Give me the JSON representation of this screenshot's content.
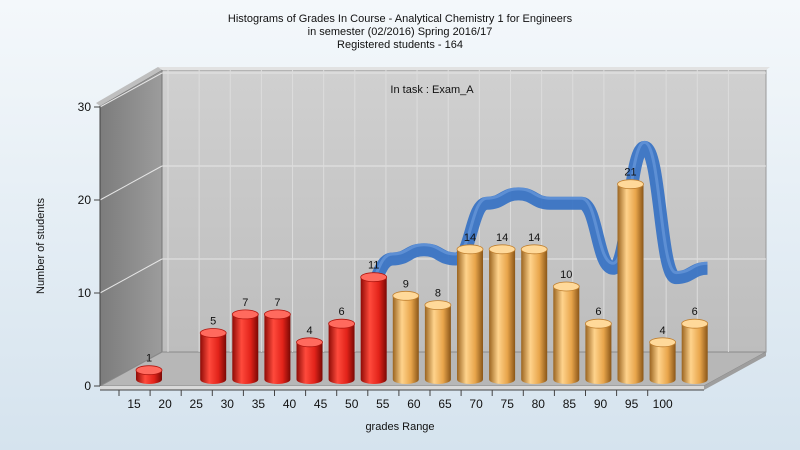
{
  "title_lines": [
    "Histograms of Grades  In Course - Analytical Chemistry 1 for Engineers",
    "in semester  (02/2016) Spring 2016/17",
    "Registered students - 164"
  ],
  "annotation": "In task : Exam_A",
  "xlabel": "grades Range",
  "ylabel": "Number of students",
  "colors": {
    "red_bar": "#e2231a",
    "orange_bar": "#e8a54b",
    "curve": "#3a74c4",
    "wall": "#8a8a8a",
    "back_panel": "#c6c6c6",
    "floor": "#b8b8b8"
  },
  "chart_data": {
    "type": "bar",
    "categories": [
      "15",
      "20",
      "25",
      "30",
      "35",
      "40",
      "45",
      "50",
      "55",
      "60",
      "65",
      "70",
      "75",
      "80",
      "85",
      "90",
      "95",
      "100"
    ],
    "values": [
      1,
      0,
      5,
      7,
      7,
      4,
      6,
      11,
      9,
      8,
      14,
      14,
      14,
      10,
      6,
      21,
      4,
      6
    ],
    "bar_colors": [
      "red",
      "red",
      "red",
      "red",
      "red",
      "red",
      "red",
      "red",
      "orange",
      "orange",
      "orange",
      "orange",
      "orange",
      "orange",
      "orange",
      "orange",
      "orange",
      "orange"
    ],
    "x_ticks": [
      "15",
      "20",
      "25",
      "30",
      "35",
      "40",
      "45",
      "50",
      "55",
      "60",
      "65",
      "70",
      "75",
      "80",
      "85",
      "90",
      "95",
      "100"
    ],
    "y_ticks": [
      "0",
      "10",
      "20",
      "30"
    ],
    "ylim": [
      0,
      30
    ],
    "grid": true,
    "curve": {
      "type": "line",
      "x": [
        45,
        50,
        55,
        60,
        65,
        70,
        75,
        80,
        85,
        90,
        95,
        100
      ],
      "y": [
        6,
        10,
        11,
        10,
        16,
        17,
        16,
        16,
        9,
        22,
        8,
        9
      ]
    }
  }
}
